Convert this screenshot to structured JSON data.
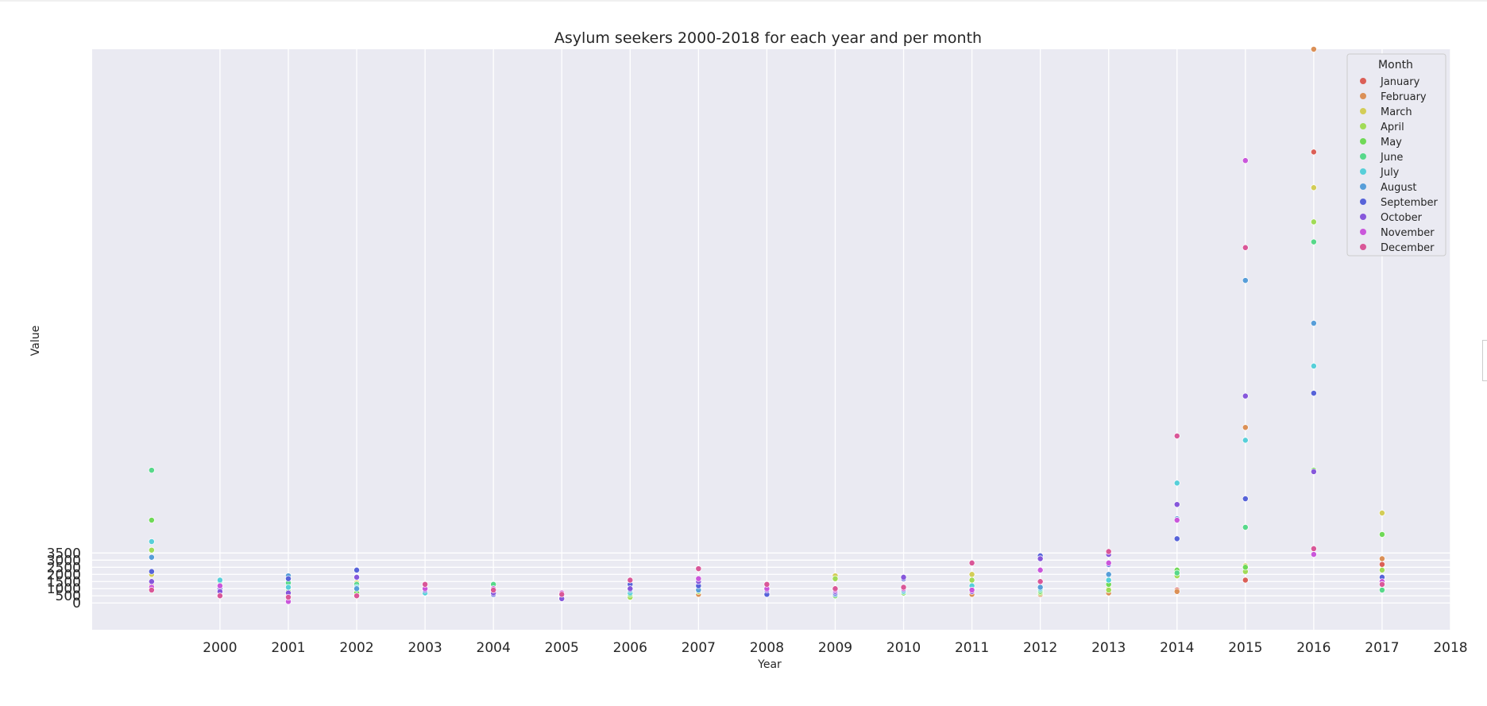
{
  "colors": {
    "plot_background": "#eaeaf2",
    "grid": "#ffffff",
    "January": "#db5f57",
    "February": "#db9057",
    "March": "#d3cd57",
    "April": "#a1db57",
    "May": "#6fd957",
    "June": "#57d88a",
    "July": "#57cfd9",
    "August": "#579ed9",
    "September": "#5763d9",
    "October": "#8657db",
    "November": "#ca57db",
    "December": "#d95798"
  },
  "chart_data": {
    "type": "scatter",
    "title": "Asylum seekers 2000-2018 for each year and per month",
    "xlabel": "Year",
    "ylabel": "Value",
    "x_ticks": [
      "2000",
      "2001",
      "2002",
      "2003",
      "2004",
      "2005",
      "2006",
      "2007",
      "2008",
      "2009",
      "2010",
      "2011",
      "2012",
      "2013",
      "2014",
      "2015",
      "2016",
      "2017",
      "2018"
    ],
    "y_ticks": [
      "0",
      "500",
      "1000",
      "1500",
      "2000",
      "2500",
      "3000",
      "3500"
    ],
    "xlim": [
      1998.13,
      2018
    ],
    "ylim": [
      -1880,
      38800
    ],
    "y_ticks_scale": "log",
    "y_ticks_scale_note": "",
    "grid": true,
    "legend": {
      "title": "Month",
      "placement": "top-right"
    },
    "series": [
      {
        "name": "January",
        "x": [
          1999,
          2000,
          2001,
          2002,
          2003,
          2004,
          2005,
          2006,
          2007,
          2008,
          2009,
          2010,
          2011,
          2012,
          2013,
          2014,
          2015,
          2016,
          2017
        ],
        "y": [
          1200,
          600,
          600,
          600,
          1300,
          1200,
          500,
          500,
          700,
          1300,
          1000,
          1000,
          700,
          700,
          900,
          900,
          1600,
          31600,
          2700
        ]
      },
      {
        "name": "February",
        "x": [
          1999,
          2000,
          2001,
          2002,
          2003,
          2004,
          2005,
          2006,
          2007,
          2008,
          2009,
          2010,
          2011,
          2012,
          2013,
          2014,
          2015,
          2016,
          2017
        ],
        "y": [
          1000,
          500,
          500,
          500,
          900,
          900,
          400,
          400,
          600,
          900,
          700,
          700,
          600,
          600,
          700,
          800,
          12300,
          38800,
          3100
        ]
      },
      {
        "name": "March",
        "x": [
          1999,
          2000,
          2001,
          2002,
          2003,
          2004,
          2005,
          2006,
          2007,
          2008,
          2009,
          2010,
          2011,
          2012,
          2013,
          2014,
          2015,
          2016,
          2017
        ],
        "y": [
          2000,
          1400,
          1600,
          1400,
          1200,
          1000,
          500,
          800,
          1000,
          1000,
          1900,
          1000,
          2000,
          1000,
          1000,
          2000,
          2600,
          29100,
          6300
        ]
      },
      {
        "name": "April",
        "x": [
          1999,
          2000,
          2001,
          2002,
          2003,
          2004,
          2005,
          2006,
          2007,
          2008,
          2009,
          2010,
          2011,
          2012,
          2013,
          2014,
          2015,
          2016,
          2017
        ],
        "y": [
          3700,
          1400,
          1500,
          900,
          1000,
          1300,
          300,
          400,
          800,
          800,
          1700,
          800,
          1600,
          700,
          900,
          1900,
          2200,
          26700,
          2300
        ]
      },
      {
        "name": "May",
        "x": [
          1999,
          2000,
          2001,
          2002,
          2003,
          2004,
          2005,
          2006,
          2007,
          2008,
          2009,
          2010,
          2011,
          2012,
          2013,
          2014,
          2015,
          2016,
          2017
        ],
        "y": [
          5800,
          900,
          800,
          700,
          800,
          700,
          300,
          600,
          900,
          700,
          500,
          700,
          900,
          800,
          1300,
          2300,
          2500,
          9300,
          4800
        ]
      },
      {
        "name": "June",
        "x": [
          1999,
          2000,
          2001,
          2002,
          2003,
          2004,
          2005,
          2006,
          2007,
          2008,
          2009,
          2010,
          2011,
          2012,
          2013,
          2014,
          2015,
          2016,
          2017
        ],
        "y": [
          9300,
          1500,
          1400,
          1300,
          800,
          1300,
          300,
          1100,
          900,
          800,
          700,
          900,
          1000,
          900,
          1600,
          2100,
          5300,
          25300,
          900
        ]
      },
      {
        "name": "July",
        "x": [
          1999,
          2000,
          2001,
          2002,
          2003,
          2004,
          2005,
          2006,
          2007,
          2008,
          2009,
          2010,
          2011,
          2012,
          2013,
          2014,
          2015,
          2016,
          2017
        ],
        "y": [
          4300,
          1600,
          1100,
          1100,
          700,
          600,
          400,
          700,
          1000,
          700,
          700,
          800,
          1200,
          1000,
          1600,
          8400,
          11400,
          16600,
          1500
        ]
      },
      {
        "name": "August",
        "x": [
          1999,
          2000,
          2001,
          2002,
          2003,
          2004,
          2005,
          2006,
          2007,
          2008,
          2009,
          2010,
          2011,
          2012,
          2013,
          2014,
          2015,
          2016,
          2017
        ],
        "y": [
          3200,
          900,
          1900,
          1000,
          1000,
          800,
          400,
          900,
          900,
          800,
          600,
          900,
          900,
          1100,
          2000,
          5900,
          22600,
          19600,
          1700
        ]
      },
      {
        "name": "September",
        "x": [
          1999,
          2000,
          2001,
          2002,
          2003,
          2004,
          2005,
          2006,
          2007,
          2008,
          2009,
          2010,
          2011,
          2012,
          2013,
          2014,
          2015,
          2016,
          2017
        ],
        "y": [
          2200,
          1000,
          1700,
          2300,
          900,
          600,
          300,
          1300,
          1200,
          600,
          700,
          1700,
          900,
          3300,
          2700,
          4500,
          7300,
          14700,
          1800
        ]
      },
      {
        "name": "October",
        "x": [
          1999,
          2000,
          2001,
          2002,
          2003,
          2004,
          2005,
          2006,
          2007,
          2008,
          2009,
          2010,
          2011,
          2012,
          2013,
          2014,
          2015,
          2016,
          2017
        ],
        "y": [
          1500,
          800,
          700,
          1800,
          1000,
          700,
          300,
          1000,
          1500,
          900,
          800,
          1800,
          800,
          3100,
          3400,
          6900,
          14500,
          9200,
          1400
        ]
      },
      {
        "name": "November",
        "x": [
          1999,
          2000,
          2001,
          2002,
          2003,
          2004,
          2005,
          2006,
          2007,
          2008,
          2009,
          2010,
          2011,
          2012,
          2013,
          2014,
          2015,
          2016,
          2017
        ],
        "y": [
          1100,
          1200,
          100,
          500,
          1000,
          1000,
          700,
          1600,
          1700,
          1000,
          900,
          1000,
          900,
          2300,
          2800,
          5800,
          31000,
          3400,
          1500
        ]
      },
      {
        "name": "December",
        "x": [
          1999,
          2000,
          2001,
          2002,
          2003,
          2004,
          2005,
          2006,
          2007,
          2008,
          2009,
          2010,
          2011,
          2012,
          2013,
          2014,
          2015,
          2016,
          2017
        ],
        "y": [
          900,
          500,
          400,
          500,
          1300,
          900,
          600,
          1600,
          2400,
          1300,
          1000,
          1100,
          2800,
          1500,
          3600,
          11700,
          24900,
          3800,
          1300
        ]
      }
    ]
  }
}
